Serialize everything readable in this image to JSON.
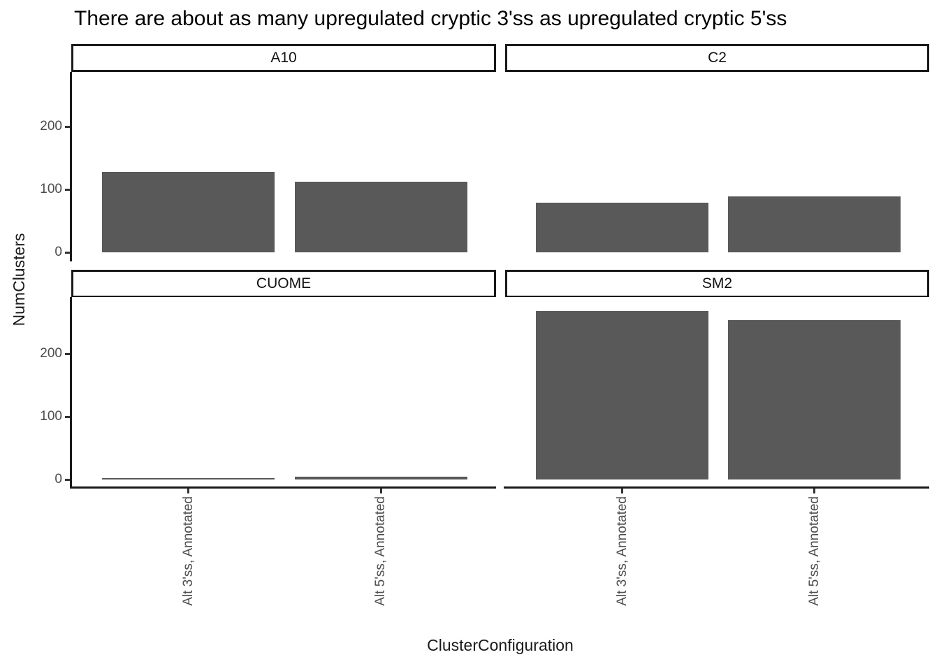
{
  "title": "There are about as many upregulated cryptic 3'ss as upregulated cryptic 5'ss",
  "chart_data": {
    "type": "bar",
    "title": "There are about as many upregulated cryptic 3'ss as upregulated cryptic 5'ss",
    "xlabel": "ClusterConfiguration",
    "ylabel": "NumClusters",
    "categories": [
      "Alt 3'ss, Annotated",
      "Alt 5'ss, Annotated"
    ],
    "facets": [
      {
        "name": "A10",
        "values": [
          128,
          112
        ]
      },
      {
        "name": "C2",
        "values": [
          79,
          89
        ]
      },
      {
        "name": "CUOME",
        "values": [
          2,
          4
        ]
      },
      {
        "name": "SM2",
        "values": [
          268,
          253
        ]
      }
    ],
    "y_ticks": [
      0,
      100,
      200
    ],
    "ylim": [
      -13,
      282
    ],
    "grid": false,
    "legend": false,
    "colors": {
      "bar_fill": "#595959",
      "axis_text": "#4d4d4d",
      "axis_line": "#1a1a1a",
      "strip_border": "#1a1a1a",
      "strip_background": "#ffffff",
      "background": "#ffffff"
    }
  }
}
